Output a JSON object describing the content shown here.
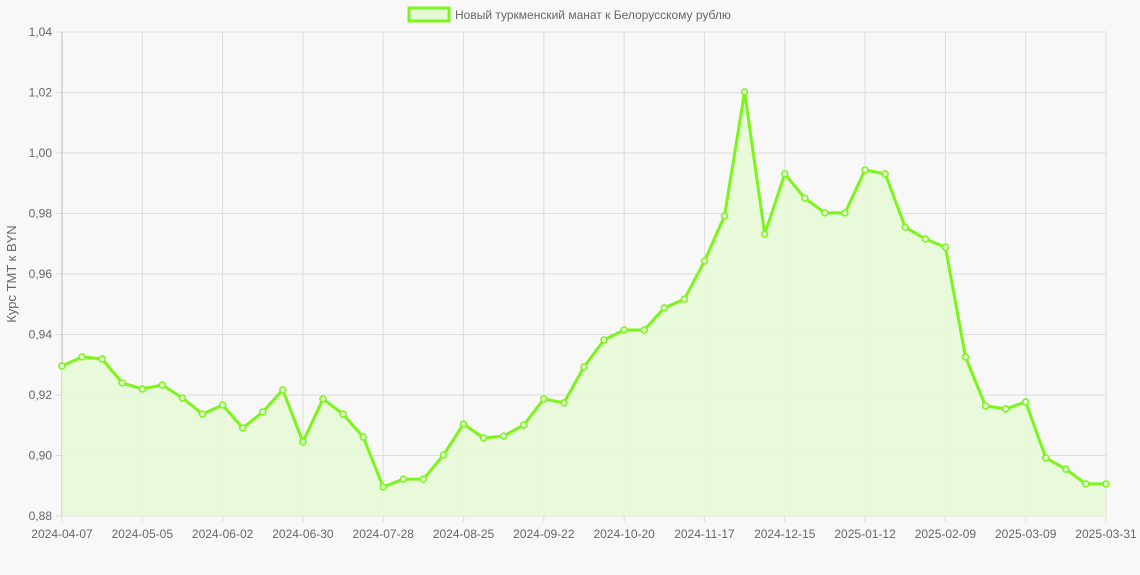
{
  "chart_data": {
    "type": "area",
    "legend": {
      "label": "Новый туркменский манат к Белорусскому рублю",
      "position": "top"
    },
    "ylabel": "Курс TMT к BYN",
    "xlabel": "",
    "ylim": [
      0.88,
      1.04
    ],
    "yticks": [
      "0,88",
      "0,90",
      "0,92",
      "0,94",
      "0,96",
      "0,98",
      "1,00",
      "1,02",
      "1,04"
    ],
    "xticks": [
      "2024-04-07",
      "2024-05-05",
      "2024-06-02",
      "2024-06-30",
      "2024-07-28",
      "2024-08-25",
      "2024-09-22",
      "2024-10-20",
      "2024-11-17",
      "2024-12-15",
      "2025-01-12",
      "2025-02-09",
      "2025-03-09",
      "2025-03-31"
    ],
    "grid": true,
    "colors": {
      "line": "#7cf51a",
      "fill": "#e6f9d6",
      "grid": "#dddddd"
    },
    "values": [
      0.9296,
      0.9326,
      0.9319,
      0.924,
      0.922,
      0.9233,
      0.919,
      0.9137,
      0.9167,
      0.9091,
      0.9144,
      0.9217,
      0.9045,
      0.9187,
      0.9137,
      0.9061,
      0.8896,
      0.8922,
      0.8922,
      0.9002,
      0.9104,
      0.9058,
      0.9064,
      0.9101,
      0.9187,
      0.9174,
      0.9293,
      0.9382,
      0.9415,
      0.9415,
      0.9488,
      0.9517,
      0.9643,
      0.9792,
      1.0202,
      0.9732,
      0.9931,
      0.9851,
      0.9802,
      0.9802,
      0.9944,
      0.9931,
      0.9755,
      0.9716,
      0.9689,
      0.9326,
      0.9164,
      0.9154,
      0.9177,
      0.8992,
      0.8955,
      0.8906,
      0.8906
    ]
  }
}
